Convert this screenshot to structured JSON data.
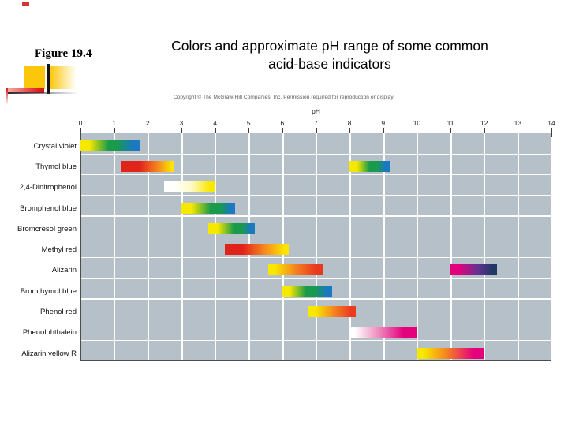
{
  "slide": {
    "figure_label": "Figure 19.4",
    "title_line1": "Colors and approximate pH range of some common",
    "title_line2": "acid-base indicators"
  },
  "figure": {
    "copyright": "Copyright © The McGraw-Hill Companies, Inc. Permission required for reproduction or display.",
    "colors": {
      "plot_background": "#b5c0c9",
      "gridline": "#ffffff",
      "plot_border": "#4c4c4c"
    }
  },
  "chart_data": {
    "type": "bar",
    "subtype": "horizontal-range-bars",
    "title": "Colors and approximate pH range of some common acid-base indicators",
    "xlabel": "pH",
    "xlim": [
      0,
      14
    ],
    "x_ticks": [
      0,
      1,
      2,
      3,
      4,
      5,
      6,
      7,
      8,
      9,
      10,
      11,
      12,
      13,
      14
    ],
    "grid": true,
    "indicators": [
      {
        "name": "Crystal violet",
        "ranges": [
          {
            "from": 0.0,
            "to": 1.8,
            "color_transition": "yellow to green to blue",
            "stops": [
              [
                "#f6e800",
                0
              ],
              [
                "#f6e800",
                15
              ],
              [
                "#1a9b4b",
                47
              ],
              [
                "#1a9b4b",
                60
              ],
              [
                "#1b78c2",
                88
              ],
              [
                "#1b78c2",
                100
              ]
            ]
          }
        ]
      },
      {
        "name": "Thymol blue",
        "ranges": [
          {
            "from": 1.2,
            "to": 2.8,
            "color_transition": "red to yellow",
            "stops": [
              [
                "#e2231a",
                0
              ],
              [
                "#e2231a",
                35
              ],
              [
                "#f58220",
                68
              ],
              [
                "#fce300",
                95
              ],
              [
                "#fce300",
                100
              ]
            ]
          },
          {
            "from": 8.0,
            "to": 9.2,
            "color_transition": "yellow to green to blue",
            "stops": [
              [
                "#f6e800",
                0
              ],
              [
                "#f6e800",
                18
              ],
              [
                "#1a9b4b",
                50
              ],
              [
                "#1a9b4b",
                68
              ],
              [
                "#1b78c2",
                90
              ],
              [
                "#1b78c2",
                100
              ]
            ]
          }
        ]
      },
      {
        "name": "2,4-Dinitrophenol",
        "ranges": [
          {
            "from": 2.5,
            "to": 4.0,
            "color_transition": "colorless to yellow",
            "stops": [
              [
                "#ffffff",
                0
              ],
              [
                "#ffffff",
                20
              ],
              [
                "#fdf9c4",
                55
              ],
              [
                "#f8e800",
                90
              ],
              [
                "#f8e800",
                100
              ]
            ]
          }
        ]
      },
      {
        "name": "Bromphenol blue",
        "ranges": [
          {
            "from": 3.0,
            "to": 4.6,
            "color_transition": "yellow to green to blue",
            "stops": [
              [
                "#f6e800",
                0
              ],
              [
                "#f6e800",
                20
              ],
              [
                "#1a9b4b",
                55
              ],
              [
                "#1a9b4b",
                72
              ],
              [
                "#1b78c2",
                92
              ],
              [
                "#1b78c2",
                100
              ]
            ]
          }
        ]
      },
      {
        "name": "Bromcresol green",
        "ranges": [
          {
            "from": 3.8,
            "to": 5.2,
            "color_transition": "yellow to green to blue",
            "stops": [
              [
                "#f6e800",
                0
              ],
              [
                "#f6e800",
                20
              ],
              [
                "#1a9b4b",
                55
              ],
              [
                "#1a9b4b",
                72
              ],
              [
                "#1b78c2",
                92
              ],
              [
                "#1b78c2",
                100
              ]
            ]
          }
        ]
      },
      {
        "name": "Methyl red",
        "ranges": [
          {
            "from": 4.3,
            "to": 6.2,
            "color_transition": "red to yellow",
            "stops": [
              [
                "#e2231a",
                0
              ],
              [
                "#e2231a",
                28
              ],
              [
                "#f58220",
                60
              ],
              [
                "#fce300",
                93
              ],
              [
                "#fce300",
                100
              ]
            ]
          }
        ]
      },
      {
        "name": "Alizarin",
        "ranges": [
          {
            "from": 5.6,
            "to": 7.2,
            "color_transition": "yellow to red",
            "stops": [
              [
                "#f8e800",
                0
              ],
              [
                "#f8e800",
                12
              ],
              [
                "#f58220",
                50
              ],
              [
                "#e8391f",
                88
              ],
              [
                "#e8391f",
                100
              ]
            ]
          },
          {
            "from": 11.0,
            "to": 12.4,
            "color_transition": "magenta to dark violet",
            "stops": [
              [
                "#e5017e",
                0
              ],
              [
                "#e5017e",
                18
              ],
              [
                "#66308f",
                58
              ],
              [
                "#1f3864",
                92
              ],
              [
                "#1f3864",
                100
              ]
            ]
          }
        ]
      },
      {
        "name": "Bromthymol blue",
        "ranges": [
          {
            "from": 6.0,
            "to": 7.5,
            "color_transition": "yellow to green to blue",
            "stops": [
              [
                "#f6e800",
                0
              ],
              [
                "#f6e800",
                16
              ],
              [
                "#1a9b4b",
                48
              ],
              [
                "#1a9b4b",
                65
              ],
              [
                "#1b78c2",
                90
              ],
              [
                "#1b78c2",
                100
              ]
            ]
          }
        ]
      },
      {
        "name": "Phenol red",
        "ranges": [
          {
            "from": 6.8,
            "to": 8.2,
            "color_transition": "yellow to red",
            "stops": [
              [
                "#f8e800",
                0
              ],
              [
                "#f8e800",
                15
              ],
              [
                "#f58220",
                55
              ],
              [
                "#ea3b1f",
                90
              ],
              [
                "#ea3b1f",
                100
              ]
            ]
          }
        ]
      },
      {
        "name": "Phenolphthalein",
        "ranges": [
          {
            "from": 8.0,
            "to": 10.0,
            "color_transition": "colorless to pink",
            "stops": [
              [
                "#ffffff",
                0
              ],
              [
                "#ffffff",
                8
              ],
              [
                "#ee86bc",
                45
              ],
              [
                "#e5017e",
                80
              ],
              [
                "#e5017e",
                100
              ]
            ]
          }
        ]
      },
      {
        "name": "Alizarin yellow R",
        "ranges": [
          {
            "from": 10.0,
            "to": 12.0,
            "color_transition": "yellow to pink",
            "stops": [
              [
                "#f8e800",
                0
              ],
              [
                "#f8e800",
                10
              ],
              [
                "#f58220",
                45
              ],
              [
                "#e5017e",
                85
              ],
              [
                "#e5017e",
                100
              ]
            ]
          }
        ]
      }
    ]
  }
}
